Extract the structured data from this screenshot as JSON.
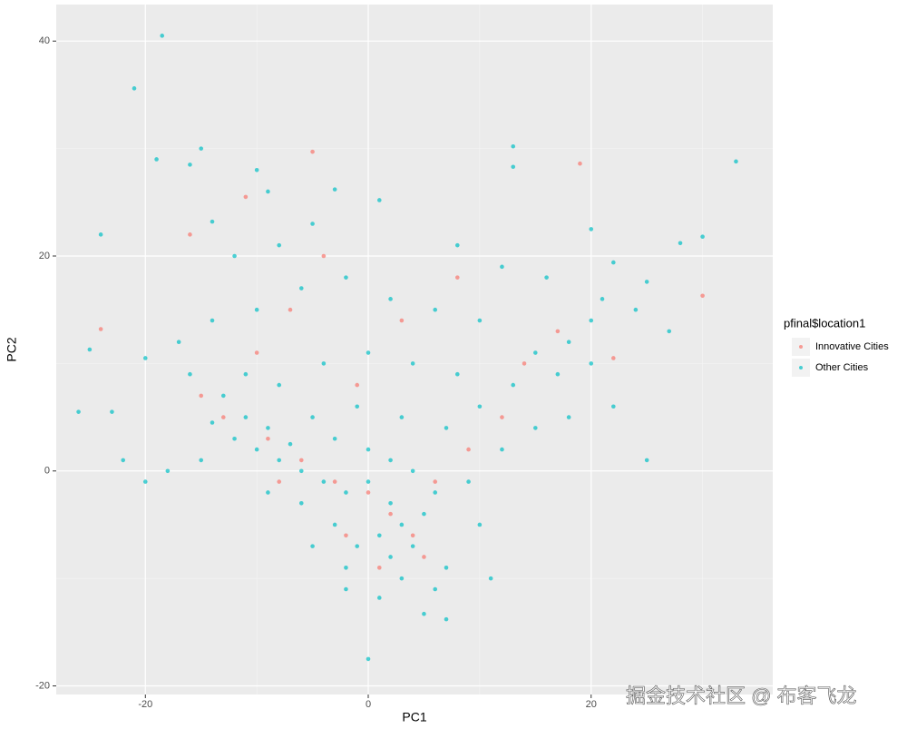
{
  "chart_data": {
    "type": "scatter",
    "x_label": "PC1",
    "y_label": "PC2",
    "legend_title": "pfinal$location1",
    "watermark": "掘金技术社区 @ 布客飞龙",
    "xlim": [
      -28,
      36.3
    ],
    "ylim": [
      -20.8,
      43.4
    ],
    "xticks": [
      -20,
      0,
      20
    ],
    "yticks": [
      -20,
      0,
      20,
      40
    ],
    "minor_xticks": [
      -10,
      10,
      30
    ],
    "minor_yticks": [
      -10,
      10,
      30
    ],
    "grid": true,
    "series": [
      {
        "name": "Innovative Cities",
        "color": "#F8766D",
        "x": [
          -5,
          19,
          -11,
          30,
          -24,
          -16,
          -7,
          3,
          14,
          17,
          -13,
          -9,
          -6,
          -3,
          0,
          2,
          4,
          1,
          -2,
          6,
          9,
          12,
          -1,
          -10,
          -15,
          22,
          -4,
          8,
          5,
          -8
        ],
        "values": [
          29.7,
          28.6,
          25.5,
          16.3,
          13.2,
          22,
          15,
          14,
          10,
          13,
          5,
          3,
          1,
          -1,
          -2,
          -4,
          -6,
          -9,
          -6,
          -1,
          2,
          5,
          8,
          11,
          7,
          10.5,
          20,
          18,
          -8,
          -1
        ]
      },
      {
        "name": "Other Cities",
        "color": "#00BFC4",
        "x": [
          -18.5,
          -21,
          -15,
          -19,
          -16,
          13,
          13,
          33,
          30,
          28,
          20,
          -24,
          -25,
          -26,
          -23,
          0,
          5,
          7,
          1,
          -2,
          -10,
          -9,
          -3,
          1,
          -14,
          -5,
          -8,
          -12,
          8,
          12,
          16,
          22,
          25,
          21,
          20,
          18,
          24,
          27,
          15,
          10,
          6,
          2,
          -2,
          -6,
          -10,
          -14,
          -17,
          -20,
          -16,
          -13,
          -11,
          -9,
          -7,
          -12,
          -14,
          -10,
          -8,
          -6,
          -4,
          -2,
          0,
          2,
          3,
          1,
          -1,
          2,
          4,
          5,
          6,
          4,
          2,
          0,
          -3,
          -5,
          -1,
          3,
          7,
          10,
          13,
          17,
          20,
          8,
          4,
          0,
          -4,
          -8,
          -11,
          -15,
          -18,
          -22,
          -9,
          -6,
          -3,
          7,
          10,
          9,
          12,
          15,
          18,
          22,
          25,
          -2,
          3,
          6,
          -20,
          -5,
          11
        ],
        "values": [
          40.5,
          35.6,
          30,
          29,
          28.5,
          30.2,
          28.3,
          28.8,
          21.8,
          21.2,
          22.5,
          22,
          11.3,
          5.5,
          5.5,
          -17.5,
          -13.3,
          -13.8,
          -11.8,
          -11,
          28,
          26,
          26.2,
          25.2,
          23.2,
          23,
          21,
          20,
          21,
          19,
          18,
          19.4,
          17.6,
          16,
          14,
          12,
          15,
          13,
          11,
          14,
          15,
          16,
          18,
          17,
          15,
          14,
          12,
          10.5,
          9,
          7,
          5,
          4,
          2.5,
          3,
          4.5,
          2,
          1,
          0,
          -1,
          -2,
          -1,
          -3,
          -5,
          -6,
          -7,
          -8,
          -7,
          -4,
          -2,
          0,
          1,
          2,
          3,
          5,
          6,
          5,
          4,
          6,
          8,
          9,
          10,
          9,
          10,
          11,
          10,
          8,
          9,
          1,
          0,
          1,
          -2,
          -3,
          -5,
          -9,
          -5,
          -1,
          2,
          4,
          5,
          6,
          1,
          -9,
          -10,
          -11,
          -1,
          -7,
          -10
        ]
      }
    ]
  }
}
